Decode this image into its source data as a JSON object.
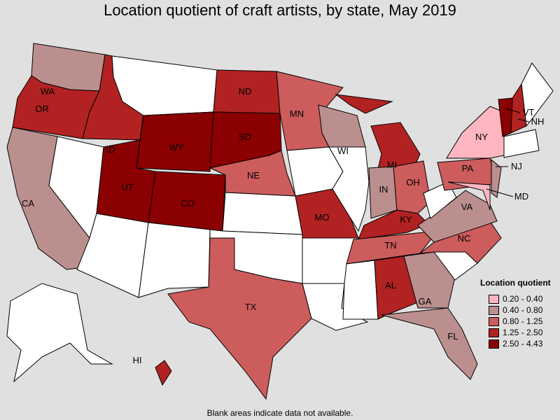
{
  "title": "Location quotient of craft artists, by state, May 2019",
  "legend": {
    "title": "Location quotient",
    "bins": [
      {
        "label": "0.20 - 0.40",
        "color": "#ffb6c1"
      },
      {
        "label": "0.40 - 0.80",
        "color": "#bc8f8f"
      },
      {
        "label": "0.80 - 1.25",
        "color": "#cd5c5c"
      },
      {
        "label": "1.25 - 2.50",
        "color": "#b22222"
      },
      {
        "label": "2.50 - 4.43",
        "color": "#8b0000"
      }
    ]
  },
  "no_data_color": "#ffffff",
  "note": "Blank areas indicate data not available.",
  "states": {
    "NY": 0,
    "MD": 0,
    "WA": 1,
    "CA": 1,
    "WI": 1,
    "IN": 1,
    "VA": 1,
    "GA": 1,
    "FL": 1,
    "NJ": 1,
    "MN": 2,
    "NE": 2,
    "TX": 2,
    "OH": 2,
    "PA": 2,
    "NC": 2,
    "TN": 2,
    "OR": 3,
    "ID": 3,
    "ND": 3,
    "MI": 3,
    "MO": 3,
    "KY": 3,
    "AL": 3,
    "NH": 3,
    "HI": 3,
    "WY": 4,
    "SD": 4,
    "UT": 4,
    "CO": 4,
    "VT": 4
  }
}
